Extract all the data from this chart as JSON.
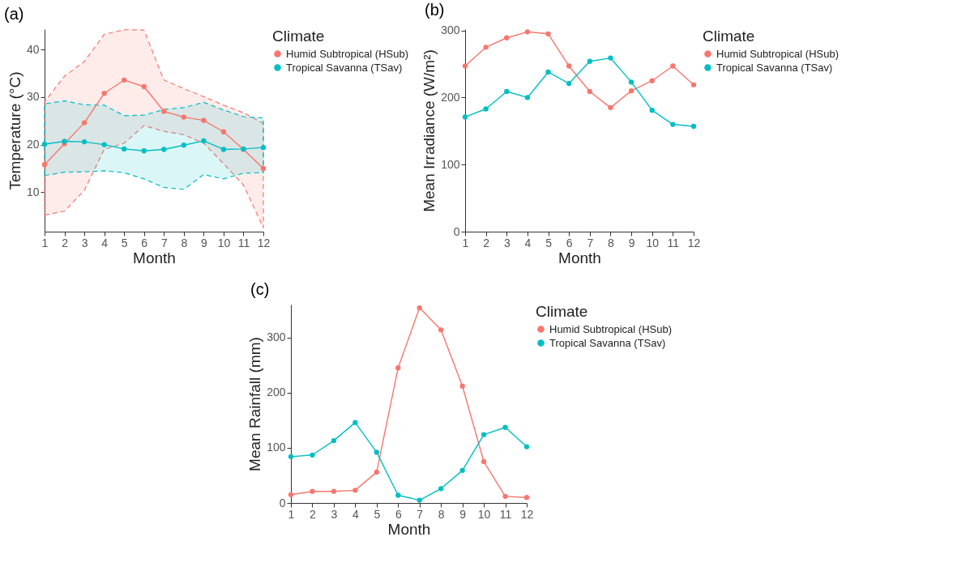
{
  "chart_data": [
    {
      "type": "line",
      "title": "(a)",
      "xlabel": "Month",
      "ylabel": "Temperature (°C)",
      "legend_title": "Climate",
      "legend": "right",
      "grid": false,
      "marker": "circle",
      "x": [
        1,
        2,
        3,
        4,
        5,
        6,
        7,
        8,
        9,
        10,
        11,
        12
      ],
      "xlim": [
        1,
        12
      ],
      "xticks": [
        1,
        2,
        3,
        4,
        5,
        6,
        7,
        8,
        9,
        10,
        11,
        12
      ],
      "ylim": [
        1.7,
        44.3
      ],
      "yticks": [
        10,
        20,
        30,
        40
      ],
      "series": [
        {
          "name": "Humid Subtropical (HSub)",
          "color": "#f8766d",
          "values": [
            15.8,
            20.2,
            24.6,
            30.8,
            33.6,
            32.2,
            27.0,
            25.8,
            25.1,
            22.7,
            19.0,
            15.0
          ],
          "lower": [
            5.2,
            6.0,
            10.4,
            19.0,
            20.3,
            24.0,
            22.8,
            22.1,
            20.3,
            16.0,
            11.5,
            2.5
          ],
          "upper": [
            29.0,
            34.4,
            37.5,
            43.2,
            44.2,
            44.1,
            33.6,
            31.8,
            30.1,
            28.3,
            26.7,
            24.5
          ]
        },
        {
          "name": "Tropical Savanna (TSav)",
          "color": "#00bfc4",
          "values": [
            20.1,
            20.7,
            20.6,
            20.0,
            19.1,
            18.7,
            19.0,
            19.9,
            20.8,
            19.0,
            19.1,
            19.4
          ],
          "lower": [
            13.5,
            14.2,
            14.3,
            14.5,
            14.1,
            12.8,
            11.0,
            10.6,
            13.7,
            12.8,
            14.0,
            14.1
          ],
          "upper": [
            28.6,
            29.2,
            28.4,
            28.3,
            26.1,
            26.2,
            27.4,
            27.8,
            28.9,
            27.3,
            25.9,
            25.6
          ]
        }
      ]
    },
    {
      "type": "line",
      "title": "(b)",
      "xlabel": "Month",
      "ylabel": "Mean Irradiance (W/m²)",
      "legend_title": "Climate",
      "legend": "right",
      "grid": false,
      "marker": "circle",
      "x": [
        1,
        2,
        3,
        4,
        5,
        6,
        7,
        8,
        9,
        10,
        11,
        12
      ],
      "xlim": [
        1,
        12
      ],
      "xticks": [
        1,
        2,
        3,
        4,
        5,
        6,
        7,
        8,
        9,
        10,
        11,
        12
      ],
      "ylim": [
        0,
        302
      ],
      "yticks": [
        0,
        100,
        200,
        300
      ],
      "series": [
        {
          "name": "Humid Subtropical (HSub)",
          "color": "#f8766d",
          "values": [
            247,
            275,
            289,
            298,
            295,
            247,
            209,
            185,
            210,
            225,
            247,
            219
          ]
        },
        {
          "name": "Tropical Savanna (TSav)",
          "color": "#00bfc4",
          "values": [
            171,
            183,
            209,
            200,
            238,
            221,
            254,
            259,
            223,
            181,
            160,
            157
          ]
        }
      ]
    },
    {
      "type": "line",
      "title": "(c)",
      "xlabel": "Month",
      "ylabel": "Mean Rainfall (mm)",
      "legend_title": "Climate",
      "legend": "right",
      "grid": false,
      "marker": "circle",
      "x": [
        1,
        2,
        3,
        4,
        5,
        6,
        7,
        8,
        9,
        10,
        11,
        12
      ],
      "xlim": [
        1,
        12
      ],
      "xticks": [
        1,
        2,
        3,
        4,
        5,
        6,
        7,
        8,
        9,
        10,
        11,
        12
      ],
      "ylim": [
        0,
        360
      ],
      "yticks": [
        0,
        100,
        200,
        300
      ],
      "series": [
        {
          "name": "Humid Subtropical (HSub)",
          "color": "#f8766d",
          "values": [
            15,
            21,
            21,
            23,
            56,
            245,
            354,
            314,
            212,
            75,
            12,
            10
          ]
        },
        {
          "name": "Tropical Savanna (TSav)",
          "color": "#00bfc4",
          "values": [
            84,
            87,
            113,
            146,
            92,
            14,
            5,
            26,
            59,
            124,
            137,
            102
          ]
        }
      ]
    }
  ]
}
